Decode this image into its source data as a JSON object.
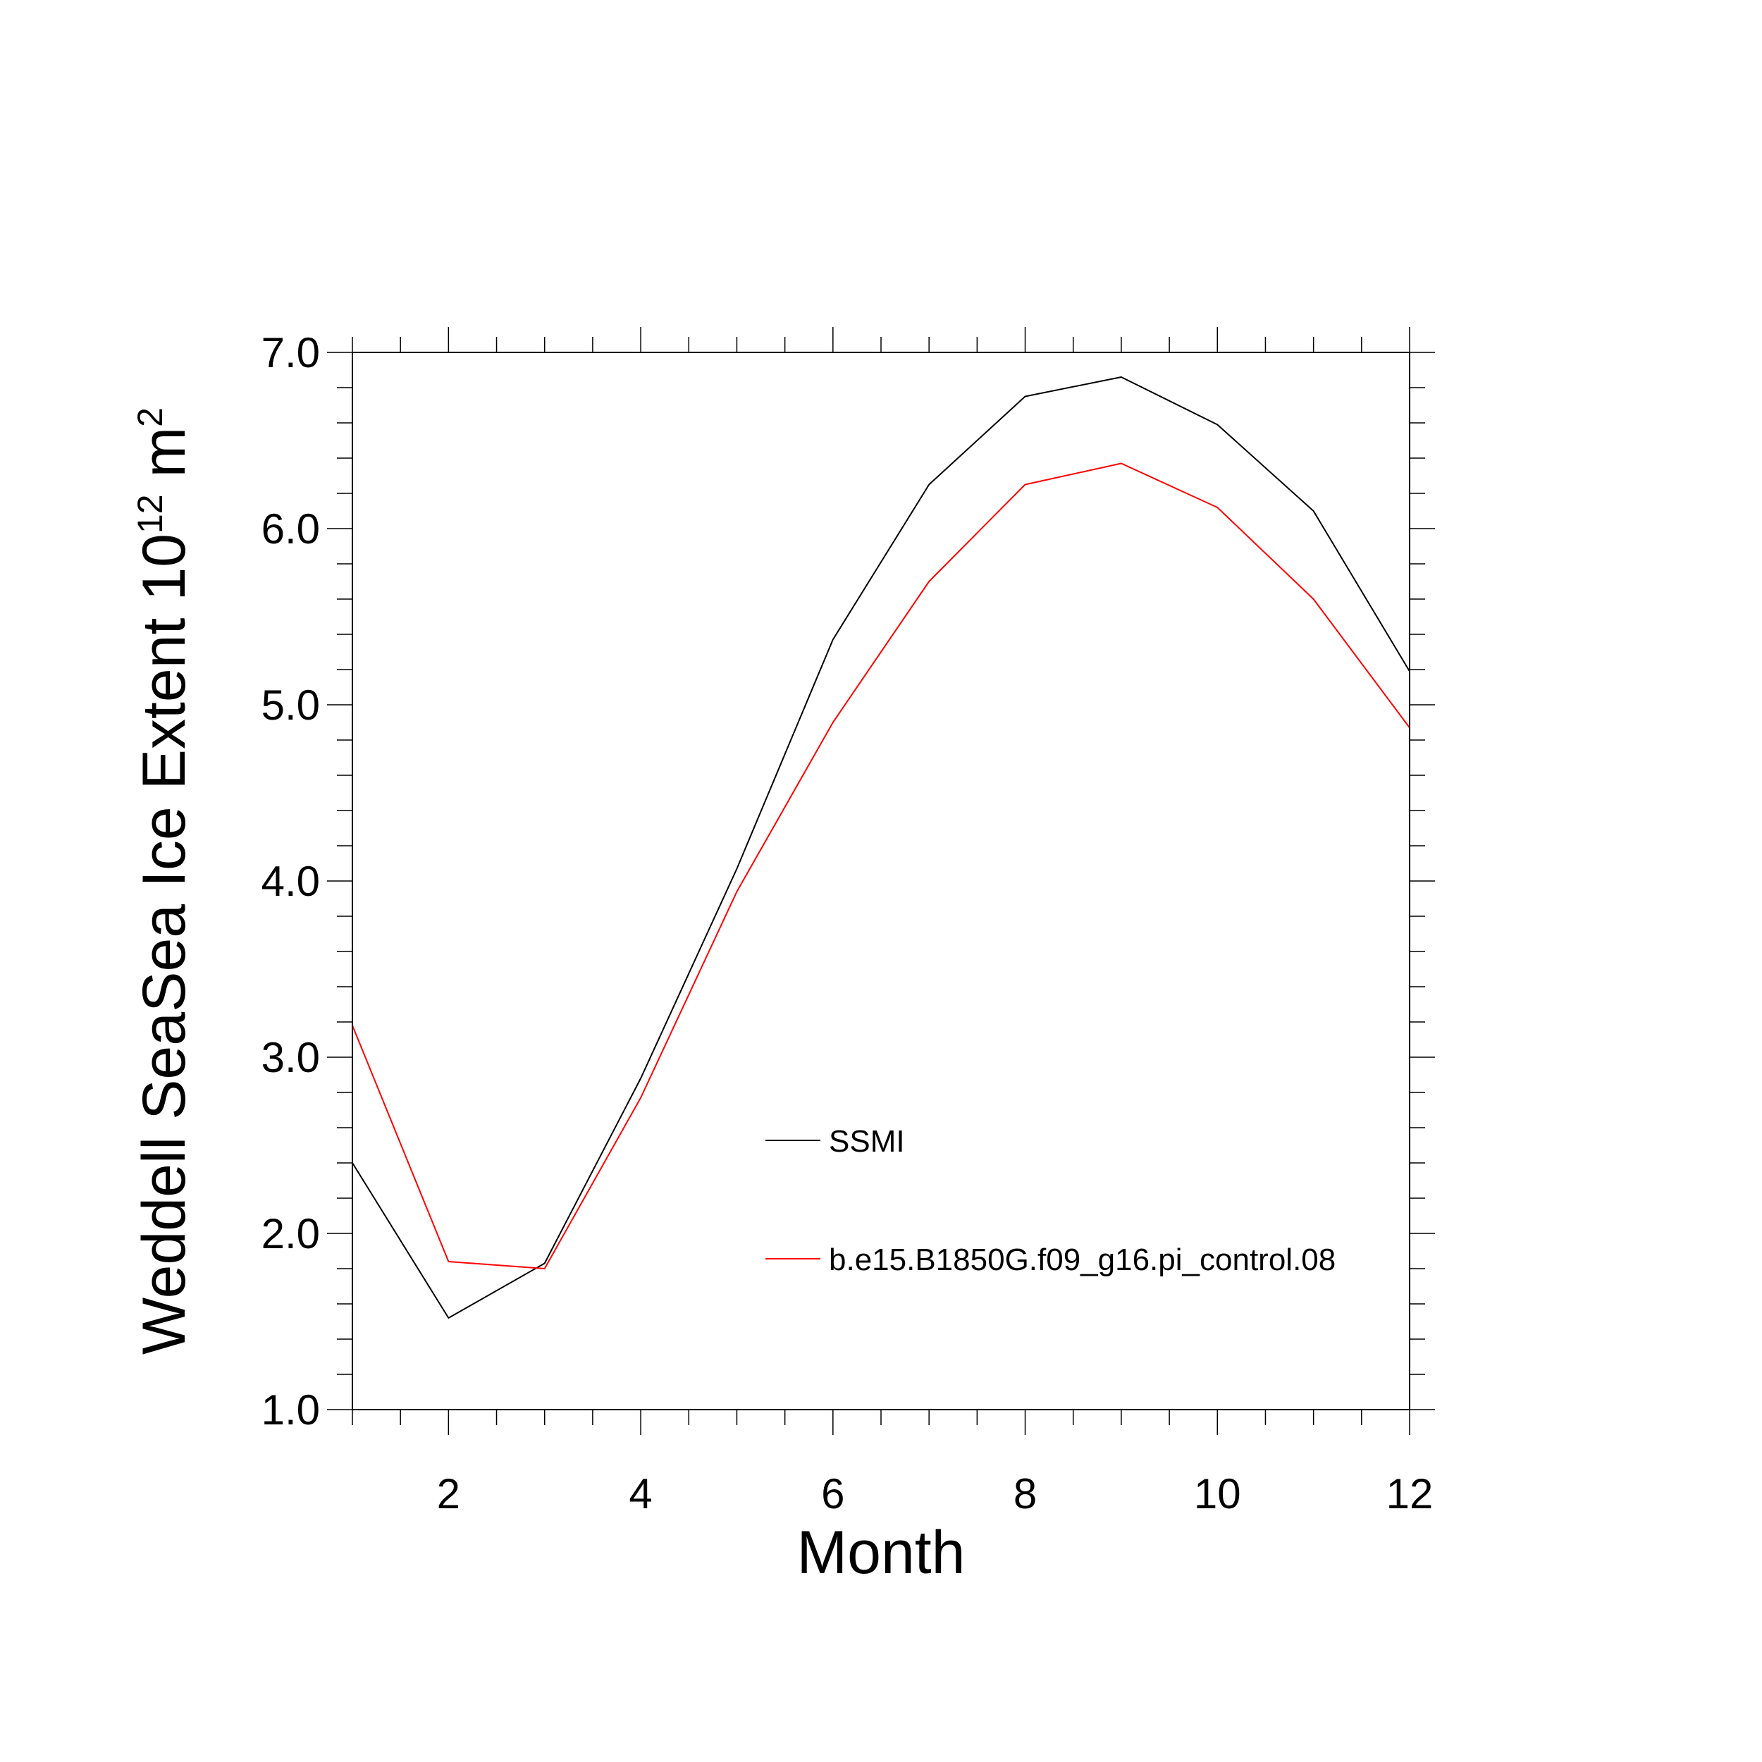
{
  "chart_data": {
    "type": "line",
    "xlabel": "Month",
    "ylabel": {
      "prefix": "Weddell SeaSea Ice Extent 10",
      "exponent1": "12",
      "unit": " m",
      "exponent2": "2"
    },
    "xlim": [
      1,
      12
    ],
    "ylim": [
      1.0,
      7.0
    ],
    "x_ticks": [
      2,
      4,
      6,
      8,
      10,
      12
    ],
    "y_ticks": [
      "1.0",
      "2.0",
      "3.0",
      "4.0",
      "5.0",
      "6.0",
      "7.0"
    ],
    "grid": false,
    "legend_position": "center-right",
    "series": [
      {
        "name": "SSMI",
        "color": "#000000",
        "x": [
          1,
          2,
          3,
          4,
          5,
          6,
          7,
          8,
          9,
          10,
          11,
          12
        ],
        "values": [
          2.4,
          1.52,
          1.83,
          2.88,
          4.07,
          5.37,
          6.25,
          6.75,
          6.86,
          6.59,
          6.1,
          5.19
        ]
      },
      {
        "name": "b.e15.B1850G.f09_g16.pi_control.08",
        "color": "#ff0000",
        "x": [
          1,
          2,
          3,
          4,
          5,
          6,
          7,
          8,
          9,
          10,
          11,
          12
        ],
        "values": [
          3.18,
          1.84,
          1.8,
          2.77,
          3.94,
          4.9,
          5.7,
          6.25,
          6.37,
          6.12,
          5.6,
          4.87
        ]
      }
    ]
  }
}
